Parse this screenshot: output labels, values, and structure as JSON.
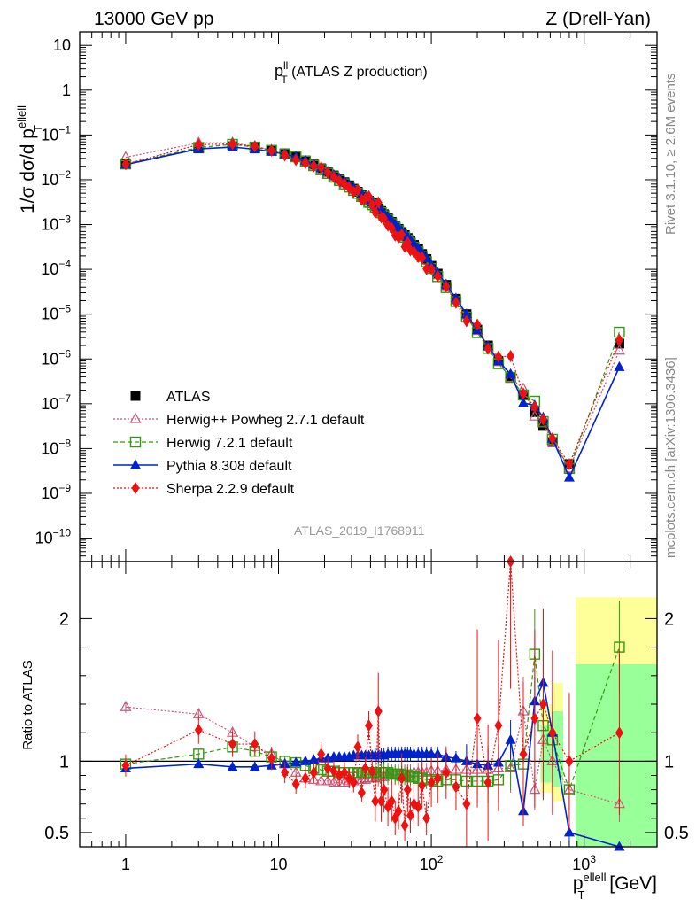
{
  "header": {
    "left": "13000 GeV pp",
    "right": "Z (Drell-Yan)"
  },
  "title": {
    "main": "p",
    "sup": "ll",
    "sub": "T",
    "rest": " (ATLAS Z production)"
  },
  "ylabel_main": {
    "pre": "1/σ dσ/d p",
    "sup": "ellell",
    "sub": "T"
  },
  "ylabel_ratio": "Ratio to ATLAS",
  "xlabel": {
    "base": "p",
    "sup": "ellell",
    "sub": "T",
    "unit": " [GeV]"
  },
  "side_labels": {
    "rivet": "Rivet 3.1.10, ≥ 2.6M events",
    "mcplots": "mcplots.cern.ch [arXiv:1306.3436]"
  },
  "analysis_id": "ATLAS_2019_I1768911",
  "legend": [
    "ATLAS",
    "Herwig++ Powheg 2.7.1 default",
    "Herwig 7.2.1 default",
    "Pythia 8.308 default",
    "Sherpa 2.2.9 default"
  ],
  "main_yticks": [
    "10",
    "1",
    "10",
    "10",
    "10",
    "10",
    "10",
    "10",
    "10",
    "10",
    "10",
    "10"
  ],
  "main_yexps": [
    "",
    "",
    "−1",
    "−2",
    "−3",
    "−4",
    "−5",
    "−6",
    "−7",
    "−8",
    "−9",
    "−10"
  ],
  "ratio_yticks": [
    "2",
    "1",
    "0.5"
  ],
  "xticks": [
    "1",
    "10",
    "10",
    "10"
  ],
  "xexps": [
    "",
    "",
    "2",
    "3"
  ],
  "colors": {
    "atlas": "#000000",
    "herwigpp": "#cc5577",
    "herwig7": "#339911",
    "pythia": "#0022cc",
    "sherpa": "#ee1111",
    "band_green": "#99ff99",
    "band_yellow": "#ffff99"
  },
  "chart_data": {
    "type": "scatter",
    "x_scale": "log",
    "y_scale": "log",
    "xlim": [
      0.5,
      3000
    ],
    "ylim": [
      3e-11,
      20
    ],
    "ratio_ylim": [
      0.4,
      2.4
    ],
    "x": [
      1,
      3,
      5,
      7,
      9,
      11,
      13,
      15,
      17,
      19,
      21,
      23,
      25,
      27,
      29,
      31,
      33,
      35,
      37,
      39,
      41,
      43,
      45,
      47,
      49,
      52,
      55,
      58,
      61,
      64,
      67,
      70,
      73,
      77,
      82,
      87,
      93,
      100,
      110,
      125,
      145,
      170,
      200,
      235,
      275,
      330,
      400,
      475,
      540,
      620,
      800,
      1700
    ],
    "atlas": [
      0.023,
      0.05,
      0.056,
      0.05,
      0.044,
      0.038,
      0.033,
      0.027,
      0.022,
      0.018,
      0.015,
      0.0125,
      0.0105,
      0.0088,
      0.0075,
      0.0063,
      0.0054,
      0.0046,
      0.004,
      0.0034,
      0.003,
      0.0026,
      0.0023,
      0.002,
      0.0017,
      0.0014,
      0.00115,
      0.00095,
      0.0008,
      0.00068,
      0.00058,
      0.0005,
      0.00043,
      0.00035,
      0.00028,
      0.00022,
      0.00017,
      0.00012,
      8e-05,
      4.5e-05,
      2.2e-05,
      1e-05,
      4.5e-06,
      2e-06,
      9e-07,
      4e-07,
      1.6e-07,
      6.5e-08,
      3.2e-08,
      1.4e-08,
      4.5e-09,
      2.2e-06
    ],
    "series": [
      {
        "name": "Herwig++ Powheg 2.7.1 default",
        "ratio": [
          1.38,
          1.33,
          1.2,
          1.1,
          1.05,
          0.98,
          0.92,
          0.88,
          0.87,
          0.86,
          0.86,
          0.85,
          0.85,
          0.85,
          0.86,
          0.86,
          0.87,
          0.87,
          0.87,
          0.88,
          0.88,
          0.88,
          0.89,
          0.89,
          0.89,
          0.9,
          0.9,
          0.9,
          0.9,
          0.9,
          0.91,
          0.91,
          0.91,
          0.92,
          0.92,
          0.92,
          0.92,
          0.93,
          0.93,
          0.94,
          0.94,
          0.94,
          0.94,
          0.94,
          0.95,
          0.95,
          1.35,
          0.8,
          1.15,
          1.0,
          0.8,
          0.7
        ]
      },
      {
        "name": "Herwig 7.2.1 default",
        "ratio": [
          0.98,
          1.05,
          1.1,
          1.07,
          1.03,
          1.0,
          0.99,
          0.97,
          0.95,
          0.94,
          0.93,
          0.93,
          0.92,
          0.92,
          0.92,
          0.92,
          0.92,
          0.92,
          0.92,
          0.92,
          0.92,
          0.92,
          0.92,
          0.92,
          0.92,
          0.92,
          0.91,
          0.91,
          0.91,
          0.9,
          0.9,
          0.9,
          0.89,
          0.89,
          0.88,
          0.88,
          0.87,
          0.87,
          0.86,
          0.87,
          0.87,
          0.86,
          0.86,
          0.86,
          0.87,
          0.97,
          0.98,
          1.75,
          1.25,
          1.15,
          0.8,
          1.8
        ]
      },
      {
        "name": "Pythia 8.308 default",
        "ratio": [
          0.95,
          0.98,
          0.96,
          0.96,
          0.97,
          0.98,
          0.99,
          1.0,
          1.01,
          1.02,
          1.02,
          1.03,
          1.03,
          1.03,
          1.03,
          1.04,
          1.04,
          1.04,
          1.04,
          1.04,
          1.04,
          1.04,
          1.04,
          1.04,
          1.04,
          1.05,
          1.05,
          1.05,
          1.05,
          1.05,
          1.05,
          1.05,
          1.05,
          1.05,
          1.05,
          1.05,
          1.05,
          1.05,
          1.05,
          1.03,
          1.02,
          1.0,
          0.98,
          0.97,
          0.99,
          1.15,
          0.65,
          1.42,
          1.55,
          1.2,
          0.5,
          0.3
        ]
      },
      {
        "name": "Sherpa 2.2.9 default",
        "ratio": [
          0.97,
          1.22,
          1.12,
          1.12,
          1.02,
          0.92,
          0.84,
          0.88,
          0.92,
          1.05,
          0.95,
          0.93,
          0.9,
          0.92,
          0.88,
          0.85,
          1.1,
          0.78,
          0.95,
          1.25,
          0.93,
          0.72,
          1.35,
          0.72,
          0.8,
          0.68,
          0.72,
          0.6,
          0.65,
          0.88,
          0.55,
          0.8,
          0.62,
          0.7,
          0.68,
          0.83,
          0.6,
          0.85,
          0.88,
          0.92,
          0.82,
          0.7,
          1.3,
          0.85,
          1.25,
          2.9,
          1.05,
          1.3,
          1.4,
          1.2,
          1.0,
          1.2
        ]
      }
    ]
  }
}
